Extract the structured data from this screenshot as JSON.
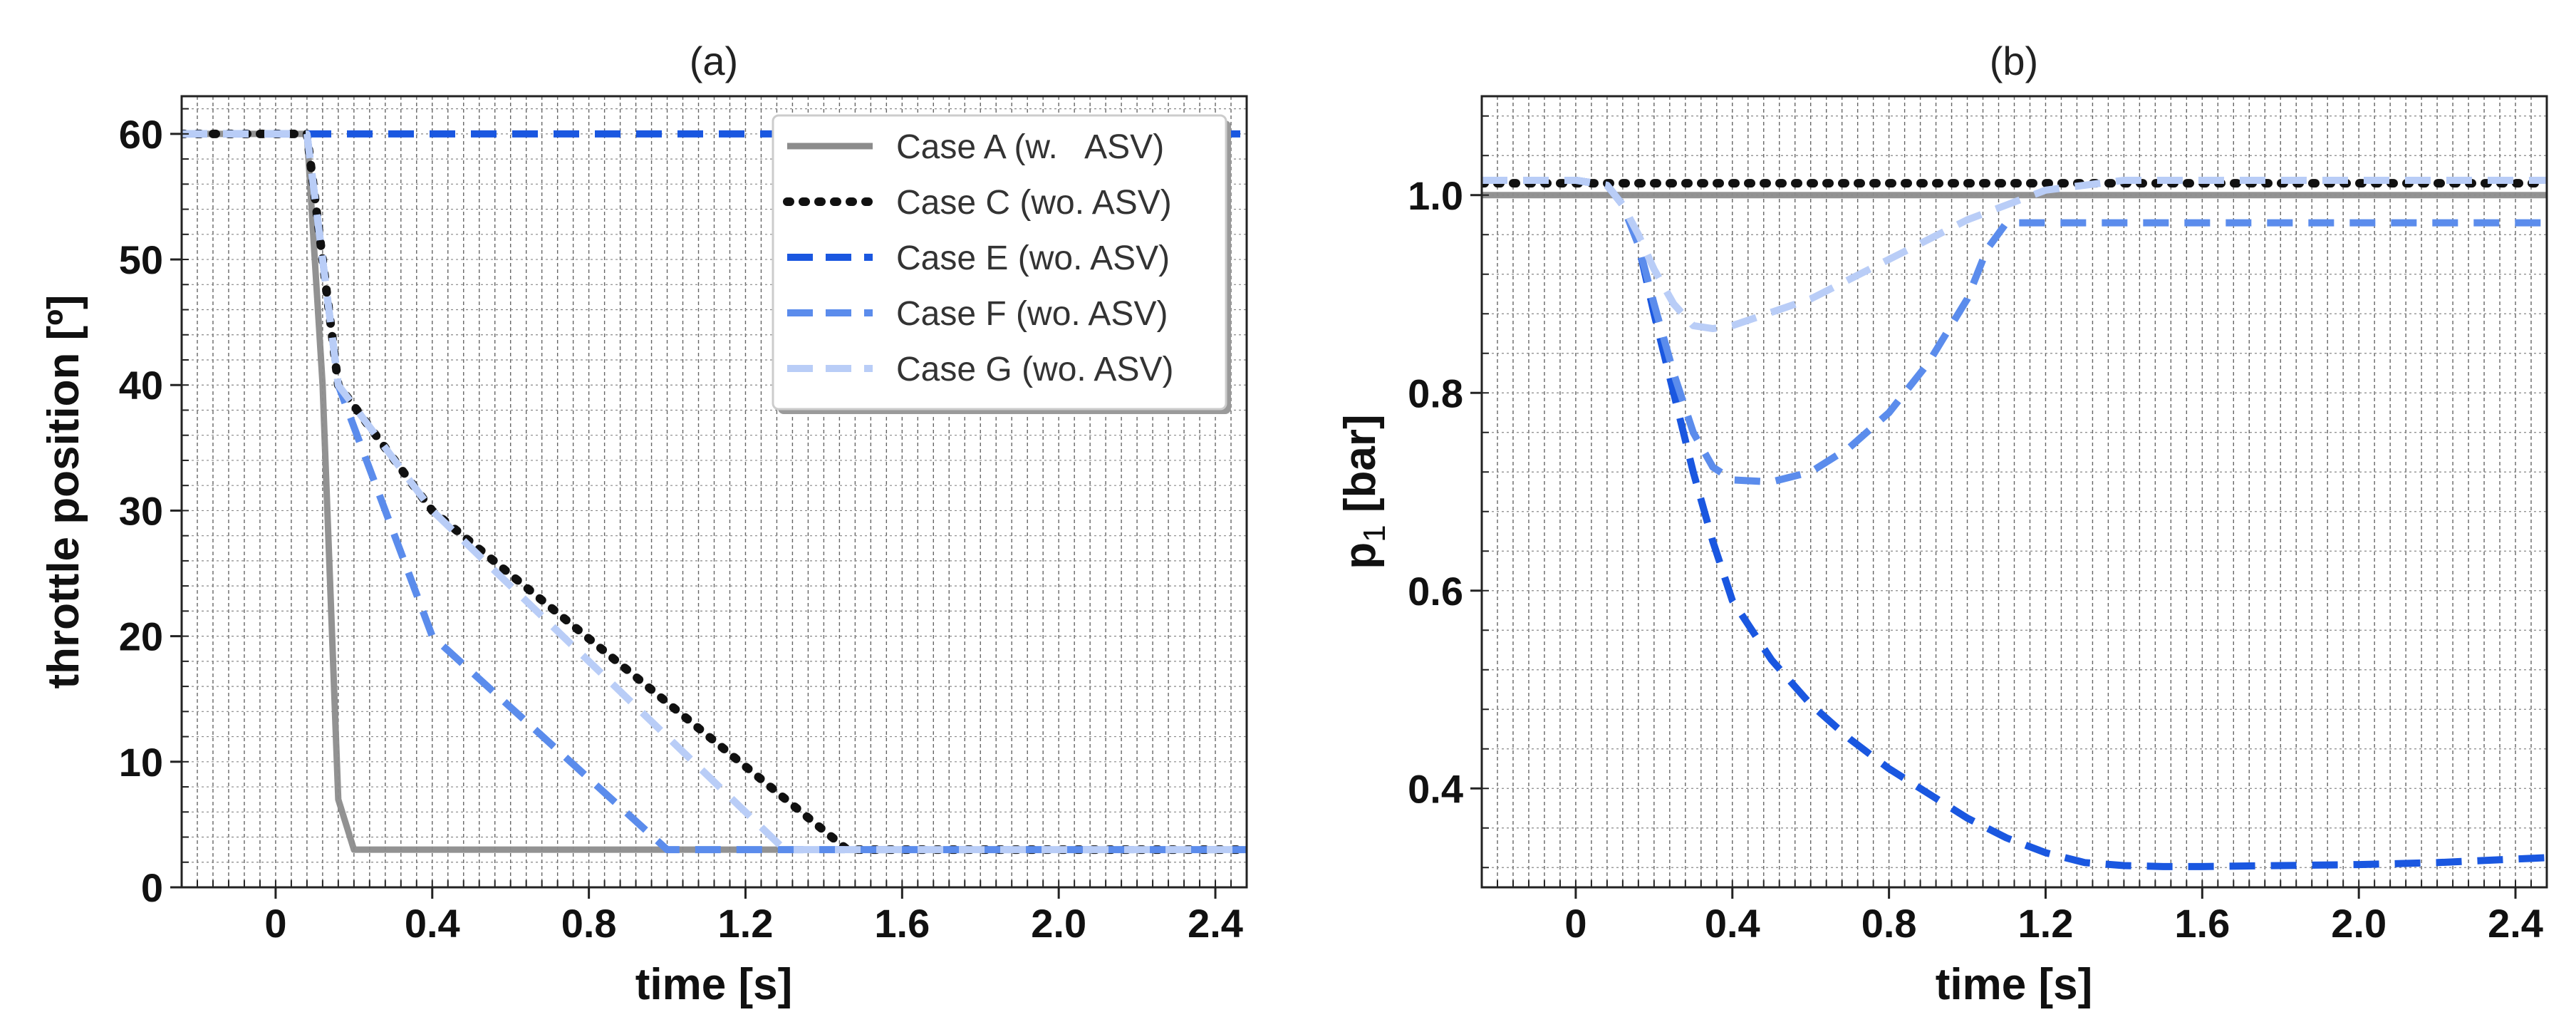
{
  "figure": {
    "legend": {
      "placement": "top-right of panel (a)",
      "entries": [
        {
          "label": "Case A (w.   ASV)",
          "color": "#8c8c8c",
          "style": "solid"
        },
        {
          "label": "Case C (wo. ASV)",
          "color": "#111111",
          "style": "dotted"
        },
        {
          "label": "Case E (wo. ASV)",
          "color": "#1a57e0",
          "style": "dashed"
        },
        {
          "label": "Case F (wo. ASV)",
          "color": "#5b8cec",
          "style": "dashed"
        },
        {
          "label": "Case G (wo. ASV)",
          "color": "#b9cdf7",
          "style": "dashed"
        }
      ]
    }
  },
  "chart_data": [
    {
      "type": "line",
      "title": "(a)",
      "xlabel": "time [s]",
      "ylabel": "throttle position [º]",
      "xlim": [
        -0.24,
        2.48
      ],
      "ylim": [
        0,
        63
      ],
      "xticks": [
        0,
        0.4,
        0.8,
        1.2,
        1.6,
        2.0,
        2.4
      ],
      "xtick_labels": [
        "0",
        "0.4",
        "0.8",
        "1.2",
        "1.6",
        "2.0",
        "2.4"
      ],
      "yticks": [
        0,
        10,
        20,
        30,
        40,
        50,
        60
      ],
      "ytick_labels": [
        "0",
        "10",
        "20",
        "30",
        "40",
        "50",
        "60"
      ],
      "grid": true,
      "series": [
        {
          "name": "Case A (w.   ASV)",
          "color": "#8c8c8c",
          "style": "solid",
          "x": [
            -0.24,
            0.08,
            0.12,
            0.16,
            0.2,
            2.48
          ],
          "y": [
            60,
            60,
            40,
            7,
            3,
            3
          ]
        },
        {
          "name": "Case C (wo. ASV)",
          "color": "#111111",
          "style": "dotted",
          "x": [
            -0.24,
            0.08,
            0.16,
            0.4,
            1.46,
            2.48
          ],
          "y": [
            60,
            60,
            40,
            30,
            3,
            3
          ]
        },
        {
          "name": "Case E (wo. ASV)",
          "color": "#1a57e0",
          "style": "dashed",
          "x": [
            -0.24,
            2.48
          ],
          "y": [
            60,
            60
          ]
        },
        {
          "name": "Case F (wo. ASV)",
          "color": "#5b8cec",
          "style": "dashed",
          "x": [
            -0.24,
            0.08,
            0.16,
            0.4,
            1.0,
            2.48
          ],
          "y": [
            60,
            60,
            40,
            20,
            3,
            3
          ]
        },
        {
          "name": "Case G (wo. ASV)",
          "color": "#b9cdf7",
          "style": "dashed",
          "x": [
            -0.24,
            0.08,
            0.16,
            0.4,
            1.3,
            2.48
          ],
          "y": [
            60,
            60,
            40,
            30,
            3,
            3
          ]
        }
      ]
    },
    {
      "type": "line",
      "title": "(b)",
      "xlabel": "time [s]",
      "ylabel": "p",
      "ylabel_subscript": "1",
      "ylabel_unit": " [bar]",
      "xlim": [
        -0.24,
        2.48
      ],
      "ylim": [
        0.3,
        1.1
      ],
      "xticks": [
        0,
        0.4,
        0.8,
        1.2,
        1.6,
        2.0,
        2.4
      ],
      "xtick_labels": [
        "0",
        "0.4",
        "0.8",
        "1.2",
        "1.6",
        "2.0",
        "2.4"
      ],
      "yticks": [
        0.4,
        0.6,
        0.8,
        1.0
      ],
      "ytick_labels": [
        "0.4",
        "0.6",
        "0.8",
        "1.0"
      ],
      "grid": true,
      "series": [
        {
          "name": "Case A (w.   ASV)",
          "color": "#8c8c8c",
          "style": "solid",
          "x": [
            -0.24,
            2.48
          ],
          "y": [
            1.0,
            1.0
          ]
        },
        {
          "name": "Case C (wo. ASV)",
          "color": "#111111",
          "style": "dotted",
          "x": [
            -0.24,
            2.48
          ],
          "y": [
            1.012,
            1.012
          ]
        },
        {
          "name": "Case E (wo. ASV)",
          "color": "#1a57e0",
          "style": "dashed",
          "x": [
            -0.24,
            0.0,
            0.08,
            0.12,
            0.16,
            0.2,
            0.25,
            0.3,
            0.35,
            0.4,
            0.5,
            0.6,
            0.7,
            0.8,
            0.9,
            1.0,
            1.1,
            1.2,
            1.3,
            1.4,
            1.5,
            1.6,
            1.8,
            2.0,
            2.2,
            2.48
          ],
          "y": [
            1.015,
            1.015,
            1.01,
            0.99,
            0.95,
            0.88,
            0.8,
            0.72,
            0.65,
            0.59,
            0.53,
            0.485,
            0.45,
            0.42,
            0.395,
            0.37,
            0.35,
            0.335,
            0.325,
            0.322,
            0.321,
            0.321,
            0.322,
            0.323,
            0.325,
            0.33
          ]
        },
        {
          "name": "Case F (wo. ASV)",
          "color": "#5b8cec",
          "style": "dashed",
          "x": [
            -0.24,
            0.0,
            0.08,
            0.12,
            0.16,
            0.2,
            0.25,
            0.3,
            0.35,
            0.4,
            0.5,
            0.6,
            0.7,
            0.8,
            0.9,
            1.0,
            1.05,
            1.1,
            1.2,
            2.48
          ],
          "y": [
            1.015,
            1.015,
            1.01,
            0.99,
            0.95,
            0.89,
            0.82,
            0.76,
            0.725,
            0.712,
            0.71,
            0.72,
            0.745,
            0.78,
            0.83,
            0.895,
            0.945,
            0.972,
            0.972,
            0.972
          ]
        },
        {
          "name": "Case G (wo. ASV)",
          "color": "#b9cdf7",
          "style": "dashed",
          "x": [
            -0.24,
            0.0,
            0.08,
            0.12,
            0.16,
            0.2,
            0.25,
            0.3,
            0.35,
            0.4,
            0.6,
            0.8,
            1.0,
            1.2,
            1.4,
            2.48
          ],
          "y": [
            1.015,
            1.015,
            1.01,
            0.99,
            0.96,
            0.925,
            0.89,
            0.868,
            0.865,
            0.868,
            0.895,
            0.935,
            0.975,
            1.005,
            1.015,
            1.015
          ]
        }
      ]
    }
  ]
}
